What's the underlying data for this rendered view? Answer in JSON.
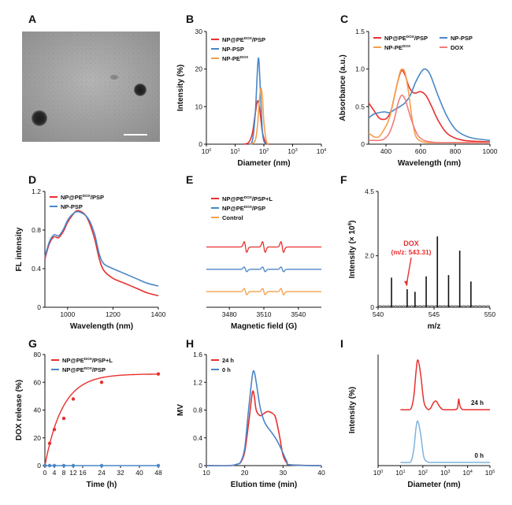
{
  "figure": {
    "panels": [
      "A",
      "B",
      "C",
      "D",
      "E",
      "F",
      "G",
      "H",
      "I"
    ]
  },
  "colors": {
    "red": "#e8302f",
    "blue": "#4a86c8",
    "orange": "#f5a04a",
    "pink": "#f07c7c",
    "lightblue": "#7db3e0",
    "black": "#111111"
  },
  "panel_a": {
    "label": "A",
    "image_kind": "TEM micrograph with nanoparticles and scale bar"
  },
  "chart_data": [
    {
      "panel": "B",
      "type": "line",
      "xlabel": "Diameter (nm)",
      "ylabel": "Intensity (%)",
      "xscale": "log",
      "xlim": [
        1,
        10000
      ],
      "ylim": [
        0,
        30
      ],
      "xticks": [
        "10^0",
        "10^1",
        "10^2",
        "10^3",
        "10^4"
      ],
      "yticks": [
        "0",
        "10",
        "20",
        "30"
      ],
      "legend_loc": "top-left",
      "series": [
        {
          "name": "NP@PE^DOX/PSP",
          "color": "red",
          "x": [
            20,
            30,
            40,
            50,
            60,
            70,
            80,
            90,
            110,
            130,
            160
          ],
          "y": [
            0,
            0.5,
            3,
            8,
            11.5,
            10,
            6,
            3,
            0.8,
            0.1,
            0
          ]
        },
        {
          "name": "NP-PSP",
          "color": "blue",
          "x": [
            30,
            40,
            50,
            60,
            65,
            70,
            80,
            90,
            100,
            120
          ],
          "y": [
            0,
            1,
            8,
            20,
            23,
            20,
            10,
            3,
            0.8,
            0
          ]
        },
        {
          "name": "NP-PE^DOX",
          "color": "orange",
          "x": [
            35,
            50,
            60,
            70,
            80,
            90,
            100,
            120,
            140
          ],
          "y": [
            0,
            1,
            5,
            12,
            15,
            12,
            6,
            1,
            0
          ]
        }
      ]
    },
    {
      "panel": "C",
      "type": "line",
      "xlabel": "Wavelength (nm)",
      "ylabel": "Absorbance (a.u.)",
      "xlim": [
        300,
        1000
      ],
      "ylim": [
        0,
        1.5
      ],
      "xticks": [
        "400",
        "600",
        "800",
        "1000"
      ],
      "yticks": [
        "0",
        "0.5",
        "1.0",
        "1.5"
      ],
      "legend_loc": "top",
      "series": [
        {
          "name": "NP@PE^DOX/PSP",
          "color": "red",
          "x": [
            300,
            330,
            360,
            390,
            410,
            430,
            450,
            470,
            490,
            510,
            530,
            550,
            570,
            600,
            630,
            660,
            700,
            750,
            800,
            850,
            900,
            1000
          ],
          "y": [
            0.55,
            0.45,
            0.35,
            0.33,
            0.36,
            0.45,
            0.65,
            0.85,
            0.98,
            0.92,
            0.78,
            0.7,
            0.68,
            0.7,
            0.65,
            0.52,
            0.32,
            0.15,
            0.08,
            0.05,
            0.04,
            0.03
          ]
        },
        {
          "name": "NP-PSP",
          "color": "blue",
          "x": [
            300,
            330,
            360,
            390,
            420,
            450,
            480,
            510,
            540,
            570,
            600,
            620,
            640,
            660,
            700,
            750,
            800,
            850,
            900,
            1000
          ],
          "y": [
            0.35,
            0.4,
            0.42,
            0.43,
            0.42,
            0.46,
            0.5,
            0.55,
            0.65,
            0.82,
            0.95,
            1.0,
            0.98,
            0.9,
            0.65,
            0.38,
            0.2,
            0.12,
            0.08,
            0.05
          ]
        },
        {
          "name": "NP-PE^DOX",
          "color": "orange",
          "x": [
            300,
            330,
            360,
            390,
            420,
            450,
            480,
            495,
            510,
            530,
            550,
            570,
            600,
            650,
            700,
            800,
            1000
          ],
          "y": [
            0.15,
            0.1,
            0.1,
            0.2,
            0.35,
            0.65,
            0.95,
            1.0,
            0.95,
            0.7,
            0.35,
            0.12,
            0.04,
            0.02,
            0.02,
            0.02,
            0.02
          ]
        },
        {
          "name": "DOX",
          "color": "pink",
          "x": [
            300,
            330,
            360,
            390,
            420,
            450,
            470,
            490,
            510,
            530,
            550,
            570,
            590,
            620,
            660,
            700,
            800,
            1000
          ],
          "y": [
            0.05,
            0.05,
            0.05,
            0.07,
            0.15,
            0.35,
            0.55,
            0.65,
            0.6,
            0.45,
            0.3,
            0.18,
            0.1,
            0.05,
            0.03,
            0.02,
            0.02,
            0.02
          ]
        }
      ]
    },
    {
      "panel": "D",
      "type": "line",
      "xlabel": "Wavelength (nm)",
      "ylabel": "FL intensity",
      "xlim": [
        900,
        1400
      ],
      "ylim": [
        0,
        1.2
      ],
      "xticks": [
        "1000",
        "1200",
        "1400"
      ],
      "yticks": [
        "0",
        "0.4",
        "0.8",
        "1.2"
      ],
      "legend_loc": "top-left",
      "series": [
        {
          "name": "NP@PE^DOX/PSP",
          "color": "red",
          "x": [
            900,
            920,
            940,
            960,
            980,
            1000,
            1020,
            1040,
            1060,
            1080,
            1100,
            1120,
            1140,
            1160,
            1200,
            1250,
            1300,
            1350,
            1400
          ],
          "y": [
            0.5,
            0.66,
            0.73,
            0.72,
            0.78,
            0.88,
            0.95,
            1.0,
            0.99,
            0.95,
            0.85,
            0.7,
            0.5,
            0.38,
            0.3,
            0.25,
            0.2,
            0.15,
            0.12
          ]
        },
        {
          "name": "NP-PSP",
          "color": "blue",
          "x": [
            900,
            920,
            940,
            960,
            980,
            1000,
            1020,
            1040,
            1060,
            1080,
            1100,
            1120,
            1140,
            1160,
            1200,
            1250,
            1300,
            1350,
            1400
          ],
          "y": [
            0.52,
            0.68,
            0.75,
            0.74,
            0.8,
            0.9,
            0.96,
            0.99,
            0.98,
            0.95,
            0.88,
            0.75,
            0.55,
            0.45,
            0.4,
            0.35,
            0.3,
            0.25,
            0.22
          ]
        }
      ]
    },
    {
      "panel": "E",
      "type": "line",
      "xlabel": "Magnetic field (G)",
      "xlim": [
        3460,
        3560
      ],
      "xticks": [
        "3480",
        "3510",
        "3540"
      ],
      "legend_loc": "top-left",
      "series": [
        {
          "name": "NP@PE^DOX/PSP+L",
          "color": "red",
          "baseline": 3.0,
          "amp": 1.0
        },
        {
          "name": "NP@PE^DOX/PSP",
          "color": "blue",
          "baseline": 2.0,
          "amp": 0.45
        },
        {
          "name": "Control",
          "color": "orange",
          "baseline": 1.0,
          "amp": 0.6
        }
      ],
      "peaks": [
        3494,
        3510,
        3526
      ]
    },
    {
      "panel": "F",
      "type": "bar",
      "xlabel": "m/z",
      "ylabel": "Intensity (× 10^6)",
      "xlim": [
        540,
        550
      ],
      "ylim": [
        0,
        4.5
      ],
      "xticks": [
        "540",
        "545",
        "550"
      ],
      "yticks": [
        "0",
        "2.0",
        "4.5"
      ],
      "x": [
        541.2,
        542.6,
        543.3,
        544.3,
        545.3,
        546.3,
        547.3,
        548.3
      ],
      "values": [
        1.15,
        0.7,
        0.6,
        1.2,
        2.75,
        1.25,
        2.2,
        1.0
      ],
      "annotation": {
        "text": "DOX",
        "subtext": "(m/z: 543.31)",
        "color": "red"
      }
    },
    {
      "panel": "G",
      "type": "line",
      "xlabel": "Time (h)",
      "ylabel": "DOX release (%)",
      "xlim": [
        0,
        48
      ],
      "ylim": [
        0,
        80
      ],
      "xticks": [
        "0",
        "4",
        "8",
        "12",
        "16",
        "24",
        "32",
        "40",
        "48"
      ],
      "xtickvals": [
        0,
        4,
        8,
        12,
        16,
        24,
        32,
        40,
        48
      ],
      "yticks": [
        "0",
        "20",
        "40",
        "60",
        "80"
      ],
      "legend_loc": "top",
      "series": [
        {
          "name": "NP@PE^DOX/PSP+L",
          "color": "red",
          "x": [
            0,
            2,
            4,
            8,
            12,
            24,
            48
          ],
          "y": [
            0,
            16,
            26,
            34,
            48,
            60,
            66
          ]
        },
        {
          "name": "NP@PE^DOX/PSP",
          "color": "blue",
          "x": [
            0,
            2,
            4,
            8,
            12,
            24,
            48
          ],
          "y": [
            0,
            0,
            0,
            0,
            0,
            0,
            0
          ]
        }
      ]
    },
    {
      "panel": "H",
      "type": "line",
      "xlabel": "Elution time (min)",
      "ylabel": "MV",
      "xlim": [
        10,
        40
      ],
      "ylim": [
        0,
        1.6
      ],
      "xticks": [
        "10",
        "20",
        "30",
        "40"
      ],
      "yticks": [
        "0",
        "0.4",
        "0.8",
        "1.2",
        "1.6"
      ],
      "legend_loc": "top-left",
      "series": [
        {
          "name": "24 h",
          "color": "red",
          "x": [
            10,
            16,
            18,
            19,
            20,
            21,
            22,
            22.5,
            23,
            24,
            25,
            26,
            27,
            28,
            29,
            30,
            31,
            32,
            40
          ],
          "y": [
            0,
            0,
            0.02,
            0.05,
            0.2,
            0.6,
            1.05,
            1.0,
            0.8,
            0.72,
            0.75,
            0.78,
            0.76,
            0.7,
            0.45,
            0.15,
            0.04,
            0.01,
            0
          ]
        },
        {
          "name": "0 h",
          "color": "blue",
          "x": [
            10,
            16,
            18,
            19,
            20,
            21,
            22,
            22.5,
            23,
            24,
            25,
            26,
            27,
            28,
            29,
            30,
            31,
            32,
            40
          ],
          "y": [
            0,
            0,
            0.02,
            0.06,
            0.25,
            0.8,
            1.3,
            1.35,
            1.2,
            0.85,
            0.65,
            0.55,
            0.48,
            0.4,
            0.3,
            0.18,
            0.06,
            0.01,
            0
          ]
        }
      ]
    },
    {
      "panel": "I",
      "type": "line",
      "xlabel": "Diameter (nm)",
      "ylabel": "Intensity (%)",
      "xscale": "log",
      "xlim": [
        1,
        100000
      ],
      "xticks": [
        "10^0",
        "10^1",
        "10^2",
        "10^3",
        "10^4",
        "10^5"
      ],
      "series": [
        {
          "name": "24 h",
          "color": "red",
          "offset": 1.0,
          "x": [
            10,
            20,
            30,
            40,
            50,
            60,
            80,
            110,
            160,
            220,
            300,
            400,
            520,
            700,
            900,
            1500,
            2500,
            3500,
            4000,
            4500,
            5500,
            8000,
            100000
          ],
          "y": [
            0,
            0,
            0.02,
            0.2,
            0.55,
            0.7,
            0.5,
            0.12,
            0.01,
            0.02,
            0.1,
            0.12,
            0.06,
            0.01,
            0,
            0,
            0,
            0.02,
            0.15,
            0.06,
            0.01,
            0,
            0
          ]
        },
        {
          "name": "0 h",
          "color": "lightblue",
          "offset": 0.0,
          "x": [
            10,
            20,
            30,
            40,
            50,
            60,
            80,
            110,
            160,
            220,
            300,
            1000,
            100000
          ],
          "y": [
            0,
            0,
            0.02,
            0.2,
            0.5,
            0.58,
            0.4,
            0.08,
            0.01,
            0,
            0,
            0,
            0
          ]
        }
      ]
    }
  ]
}
